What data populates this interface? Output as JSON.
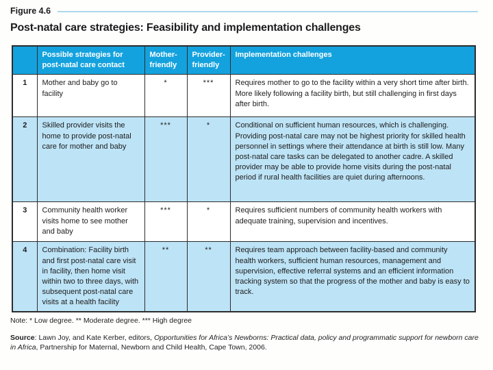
{
  "figure": {
    "label": "Figure 4.6"
  },
  "title": "Post-natal care strategies: Feasibility and implementation challenges",
  "colors": {
    "header_blue": "#14a2de",
    "row_light_blue": "#bde3f6",
    "rule_light_blue": "#abd9ee",
    "border_dark": "#2b2b2b"
  },
  "legend": {
    "low": "*",
    "moderate": "**",
    "high": "***"
  },
  "table": {
    "headers": {
      "num": "",
      "strategy": "Possible strategies for post-natal care contact",
      "mother": "Mother-friendly",
      "provider": "Provider-friendly",
      "challenges": "Implementation challenges"
    },
    "rows": [
      {
        "num": "1",
        "strategy": "Mother and baby go to facility",
        "mother": "*",
        "provider": "***",
        "challenges": "Requires mother to go to the facility within a very short time after birth. More likely following a facility birth, but still challenging in first days after birth."
      },
      {
        "num": "2",
        "strategy": "Skilled provider visits the home to provide post-natal care for mother and baby",
        "mother": "***",
        "provider": "*",
        "challenges": "Conditional on sufficient human resources, which is challenging. Providing post-natal care may not be highest priority for skilled health personnel in settings where their attendance at birth is still low. Many post-natal care tasks can be delegated to another cadre. A skilled provider may be able to provide home visits during the post-natal period if rural health facilities are quiet during afternoons."
      },
      {
        "num": "3",
        "strategy": "Community health worker visits home to see mother and baby",
        "mother": "***",
        "provider": "*",
        "challenges": "Requires sufficient numbers of community health workers with adequate training, supervision and incentives."
      },
      {
        "num": "4",
        "strategy": "Combination: Facility birth and first post-natal care visit in facility, then home visit within two to three days, with subsequent post-natal care visits at a health facility",
        "mother": "**",
        "provider": "**",
        "challenges": "Requires team approach between facility-based and community health workers, sufficient human resources, management and supervision, effective referral systems and an efficient information tracking system so that the progress of the mother and baby is easy to track."
      }
    ]
  },
  "note": "Note: * Low degree. ** Moderate degree. *** High degree",
  "source": {
    "label": "Source",
    "pre": ": Lawn Joy, and Kate Kerber, editors, ",
    "title_italic": "Opportunities for Africa’s Newborns: Practical data, policy and programmatic support for newborn care in Africa",
    "post": ", Partnership for Maternal, Newborn and Child Health, Cape Town, 2006."
  }
}
